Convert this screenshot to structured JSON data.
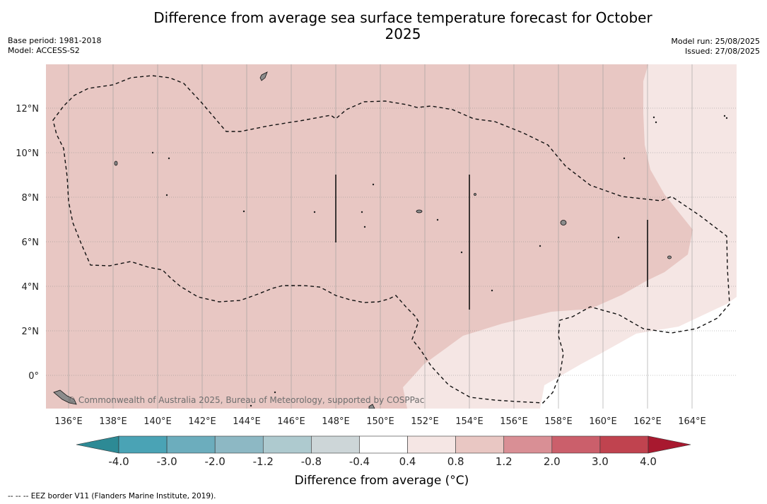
{
  "title": "Difference from average sea surface temperature forecast for October 2025",
  "meta": {
    "base_period": "Base period: 1981-2018",
    "model": "Model: ACCESS-S2",
    "model_run": "Model run: 25/08/2025",
    "issued": "Issued: 27/08/2025"
  },
  "lon_labels": [
    "136°E",
    "138°E",
    "140°E",
    "142°E",
    "144°E",
    "146°E",
    "148°E",
    "150°E",
    "152°E",
    "154°E",
    "156°E",
    "158°E",
    "160°E",
    "162°E",
    "164°E"
  ],
  "lat_labels": [
    "12°N",
    "10°N",
    "8°N",
    "6°N",
    "4°N",
    "2°N",
    "0°"
  ],
  "credit": "© Commonwealth of Australia 2025, Bureau of Meteorology, supported by COSPPac",
  "colorbar": {
    "labels": [
      "-4.0",
      "-3.0",
      "-2.0",
      "-1.2",
      "-0.8",
      "-0.4",
      "0.4",
      "0.8",
      "1.2",
      "2.0",
      "3.0",
      "4.0"
    ],
    "colors": [
      "#2d8a95",
      "#4aa3b5",
      "#6cadbd",
      "#8db8c4",
      "#aecacf",
      "#cdd6d8",
      "#ffffff",
      "#f5e6e4",
      "#e9c7c3",
      "#d98f95",
      "#cb5f6b",
      "#c0434f",
      "#a8192f"
    ],
    "title": "Difference from average (°C)"
  },
  "fill_colors": {
    "land": "#8c8c8c",
    "warm": "#e8c7c3",
    "slight": "#f5e6e4",
    "neutral": "#ffffff"
  },
  "footnote": "--  --  -- EEZ border V11 (Flanders Marine Institute, 2019)."
}
